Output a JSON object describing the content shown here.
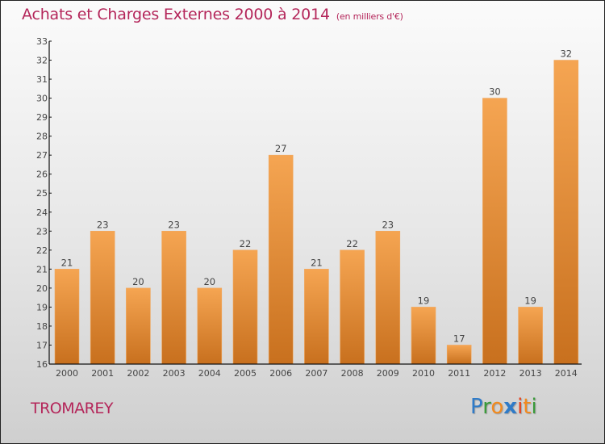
{
  "chart_data": {
    "type": "bar",
    "title": "Achats et Charges Externes 2000 à 2014",
    "subtitle": "(en milliers d'€)",
    "categories": [
      "2000",
      "2001",
      "2002",
      "2003",
      "2004",
      "2005",
      "2006",
      "2007",
      "2008",
      "2009",
      "2010",
      "2011",
      "2012",
      "2013",
      "2014"
    ],
    "values": [
      21,
      23,
      20,
      23,
      20,
      22,
      27,
      21,
      22,
      23,
      19,
      17,
      30,
      19,
      32
    ],
    "xlabel": "",
    "ylabel": "",
    "ylim": [
      16,
      33
    ],
    "yticks": [
      16,
      17,
      18,
      19,
      20,
      21,
      22,
      23,
      24,
      25,
      26,
      27,
      28,
      29,
      30,
      31,
      32,
      33
    ],
    "grid": false,
    "bar_color_top": "#f5a552",
    "bar_color_bottom": "#c8701e",
    "data_labels": true
  },
  "footer": {
    "city": "TROMAREY",
    "logo": [
      {
        "char": "P",
        "color": "#2f7bc8"
      },
      {
        "char": "r",
        "color": "#3a9a3a"
      },
      {
        "char": "o",
        "color": "#f28a1e"
      },
      {
        "char": "x",
        "color": "#2f7bc8"
      },
      {
        "char": "i",
        "color": "#e8421e"
      },
      {
        "char": "t",
        "color": "#f28a1e"
      },
      {
        "char": "i",
        "color": "#3a9a3a"
      }
    ]
  }
}
